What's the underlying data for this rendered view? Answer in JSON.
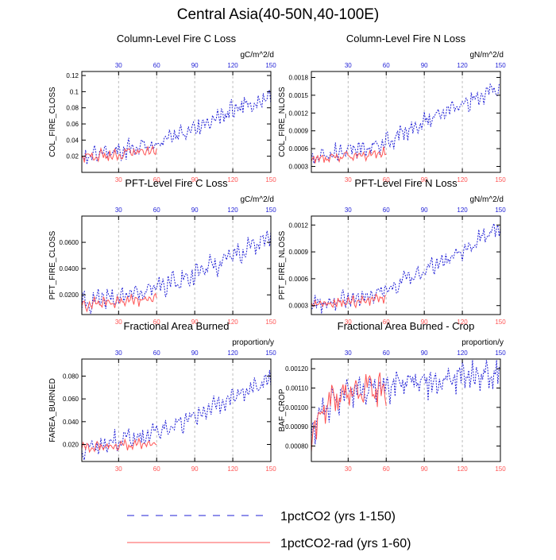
{
  "title": "Central Asia(40-50N,40-100E)",
  "legend": {
    "position": "bottom-center",
    "items": [
      {
        "label": "1pctCO2 (yrs 1-150)",
        "color": "#1f1fd6",
        "style": "dashed"
      },
      {
        "label": "1pctCO2-rad (yrs 1-60)",
        "color": "#ff5555",
        "style": "solid"
      }
    ]
  },
  "chart_data": [
    {
      "type": "line",
      "title": "Column-Level Fire C Loss",
      "units": "gC/m^2/d",
      "ylabel": "COL_FIRE_CLOSS",
      "xlim": [
        1,
        150
      ],
      "ylim": [
        0.0,
        0.125
      ],
      "yticks": [
        0.02,
        0.04,
        0.06,
        0.08,
        0.1,
        0.12
      ],
      "ytick_labels": [
        "0.02",
        "0.04",
        "0.06",
        "0.08",
        "0.1",
        "0.12"
      ],
      "xticks": [
        30,
        60,
        90,
        120,
        150
      ],
      "xtick_labels": [
        "30",
        "60",
        "90",
        "120",
        "150"
      ],
      "vgrid": true,
      "series": [
        {
          "name": "1pctCO2 (yrs 1-150)",
          "years": [
            1,
            150
          ],
          "trend": [
            [
              1,
              0.018
            ],
            [
              30,
              0.027
            ],
            [
              60,
              0.035
            ],
            [
              90,
              0.055
            ],
            [
              120,
              0.075
            ],
            [
              150,
              0.095
            ]
          ],
          "amplitude": 0.018
        },
        {
          "name": "1pctCO2-rad (yrs 1-60)",
          "years": [
            1,
            60
          ],
          "trend": [
            [
              1,
              0.019
            ],
            [
              30,
              0.022
            ],
            [
              60,
              0.027
            ]
          ],
          "amplitude": 0.011
        }
      ]
    },
    {
      "type": "line",
      "title": "Column-Level Fire N Loss",
      "units": "gN/m^2/d",
      "ylabel": "COL_FIRE_NLOSS",
      "xlim": [
        1,
        150
      ],
      "ylim": [
        0.0002,
        0.0019
      ],
      "yticks": [
        0.0003,
        0.0006,
        0.0009,
        0.0012,
        0.0015,
        0.0018
      ],
      "ytick_labels": [
        "0.0003",
        "0.0006",
        "0.0009",
        "0.0012",
        "0.0015",
        "0.0018"
      ],
      "xticks": [
        30,
        60,
        90,
        120,
        150
      ],
      "xtick_labels": [
        "30",
        "60",
        "90",
        "120",
        "150"
      ],
      "vgrid": true,
      "series": [
        {
          "name": "1pctCO2 (yrs 1-150)",
          "years": [
            1,
            150
          ],
          "trend": [
            [
              1,
              0.00043
            ],
            [
              30,
              0.00055
            ],
            [
              60,
              0.00072
            ],
            [
              90,
              0.00105
            ],
            [
              120,
              0.00135
            ],
            [
              150,
              0.00165
            ]
          ],
          "amplitude": 0.00022
        },
        {
          "name": "1pctCO2-rad (yrs 1-60)",
          "years": [
            1,
            60
          ],
          "trend": [
            [
              1,
              0.00043
            ],
            [
              30,
              0.00047
            ],
            [
              60,
              0.00052
            ]
          ],
          "amplitude": 0.00013
        }
      ]
    },
    {
      "type": "line",
      "title": "PFT-Level Fire C Loss",
      "units": "gC/m^2/d",
      "ylabel": "PFT_FIRE_CLOSS",
      "xlim": [
        1,
        150
      ],
      "ylim": [
        0.005,
        0.08
      ],
      "yticks": [
        0.02,
        0.04,
        0.06
      ],
      "ytick_labels": [
        "0.0200",
        "0.0400",
        "0.0600"
      ],
      "xticks": [
        30,
        60,
        90,
        120,
        150
      ],
      "xtick_labels": [
        "30",
        "60",
        "90",
        "120",
        "150"
      ],
      "vgrid": true,
      "series": [
        {
          "name": "1pctCO2 (yrs 1-150)",
          "years": [
            1,
            150
          ],
          "trend": [
            [
              1,
              0.013
            ],
            [
              30,
              0.018
            ],
            [
              60,
              0.025
            ],
            [
              90,
              0.036
            ],
            [
              120,
              0.05
            ],
            [
              150,
              0.065
            ]
          ],
          "amplitude": 0.011
        },
        {
          "name": "1pctCO2-rad (yrs 1-60)",
          "years": [
            1,
            60
          ],
          "trend": [
            [
              1,
              0.013
            ],
            [
              30,
              0.015
            ],
            [
              60,
              0.018
            ]
          ],
          "amplitude": 0.006
        }
      ]
    },
    {
      "type": "line",
      "title": "PFT-Level Fire N Loss",
      "units": "gN/m^2/d",
      "ylabel": "PFT_FIRE_NLOSS",
      "xlim": [
        1,
        150
      ],
      "ylim": [
        0.0002,
        0.0013
      ],
      "yticks": [
        0.0003,
        0.0006,
        0.0009,
        0.0012
      ],
      "ytick_labels": [
        "0.0003",
        "0.0006",
        "0.0009",
        "0.0012"
      ],
      "xticks": [
        30,
        60,
        90,
        120,
        150
      ],
      "xtick_labels": [
        "30",
        "60",
        "90",
        "120",
        "150"
      ],
      "vgrid": true,
      "series": [
        {
          "name": "1pctCO2 (yrs 1-150)",
          "years": [
            1,
            150
          ],
          "trend": [
            [
              1,
              0.00031
            ],
            [
              30,
              0.00038
            ],
            [
              60,
              0.00048
            ],
            [
              90,
              0.00068
            ],
            [
              120,
              0.00092
            ],
            [
              150,
              0.00118
            ]
          ],
          "amplitude": 0.00013
        },
        {
          "name": "1pctCO2-rad (yrs 1-60)",
          "years": [
            1,
            60
          ],
          "trend": [
            [
              1,
              0.00031
            ],
            [
              30,
              0.00034
            ],
            [
              60,
              0.00039
            ]
          ],
          "amplitude": 8e-05
        }
      ]
    },
    {
      "type": "line",
      "title": "Fractional Area Burned",
      "units": "proportion/y",
      "ylabel": "FAREA_BURNED",
      "xlim": [
        1,
        150
      ],
      "ylim": [
        0.005,
        0.095
      ],
      "yticks": [
        0.02,
        0.04,
        0.06,
        0.08
      ],
      "ytick_labels": [
        "0.020",
        "0.040",
        "0.060",
        "0.080"
      ],
      "xticks": [
        30,
        60,
        90,
        120,
        150
      ],
      "xtick_labels": [
        "30",
        "60",
        "90",
        "120",
        "150"
      ],
      "vgrid": true,
      "series": [
        {
          "name": "1pctCO2 (yrs 1-150)",
          "years": [
            1,
            150
          ],
          "trend": [
            [
              1,
              0.016
            ],
            [
              30,
              0.022
            ],
            [
              60,
              0.03
            ],
            [
              90,
              0.046
            ],
            [
              120,
              0.062
            ],
            [
              150,
              0.078
            ]
          ],
          "amplitude": 0.013
        },
        {
          "name": "1pctCO2-rad (yrs 1-60)",
          "years": [
            1,
            60
          ],
          "trend": [
            [
              1,
              0.017
            ],
            [
              30,
              0.019
            ],
            [
              60,
              0.021
            ]
          ],
          "amplitude": 0.006
        }
      ]
    },
    {
      "type": "line",
      "title": "Fractional Area Burned - Crop",
      "units": "proportion/y",
      "ylabel": "BAF_CROP",
      "xlim": [
        1,
        150
      ],
      "ylim": [
        0.00072,
        0.00125
      ],
      "yticks": [
        0.0008,
        0.0009,
        0.001,
        0.0011,
        0.0012
      ],
      "ytick_labels": [
        "0.00080",
        "0.00090",
        "0.00100",
        "0.00110",
        "0.00120"
      ],
      "xticks": [
        30,
        60,
        90,
        120,
        150
      ],
      "xtick_labels": [
        "30",
        "60",
        "90",
        "120",
        "150"
      ],
      "vgrid": true,
      "series": [
        {
          "name": "1pctCO2 (yrs 1-150)",
          "years": [
            1,
            150
          ],
          "trend": [
            [
              1,
              0.00088
            ],
            [
              15,
              0.00102
            ],
            [
              30,
              0.00108
            ],
            [
              60,
              0.00111
            ],
            [
              90,
              0.00113
            ],
            [
              120,
              0.00116
            ],
            [
              150,
              0.00118
            ]
          ],
          "amplitude": 0.00011
        },
        {
          "name": "1pctCO2-rad (yrs 1-60)",
          "years": [
            1,
            60
          ],
          "trend": [
            [
              1,
              0.00086
            ],
            [
              15,
              0.00102
            ],
            [
              30,
              0.00108
            ],
            [
              60,
              0.00109
            ]
          ],
          "amplitude": 0.00013
        }
      ]
    }
  ]
}
